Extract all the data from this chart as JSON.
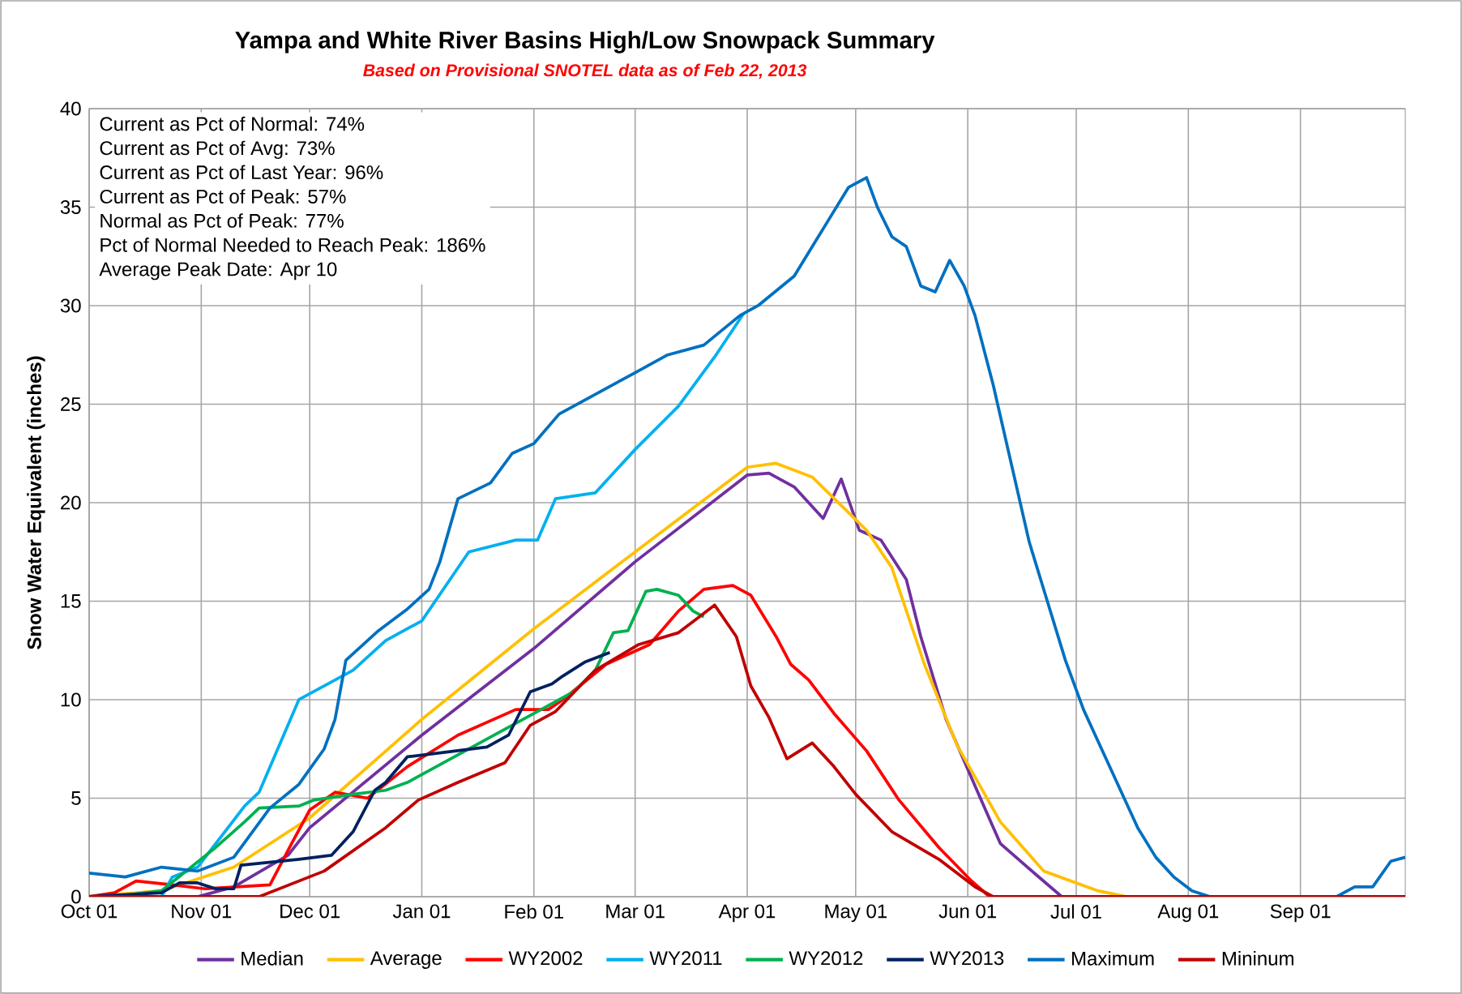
{
  "chart_data": {
    "type": "line",
    "title": "Yampa and White River Basins High/Low Snowpack Summary",
    "subtitle": "Based on Provisional SNOTEL data as of Feb 22, 2013",
    "ylabel": "Snow Water Equivalent (inches)",
    "xlim": [
      "2012-10-01",
      "2013-09-30"
    ],
    "ylim": [
      0,
      40
    ],
    "xticks": [
      {
        "value": "2012-10-01",
        "label": "Oct 01"
      },
      {
        "value": "2012-11-01",
        "label": "Nov 01"
      },
      {
        "value": "2012-12-01",
        "label": "Dec 01"
      },
      {
        "value": "2013-01-01",
        "label": "Jan 01"
      },
      {
        "value": "2013-02-01",
        "label": "Feb 01"
      },
      {
        "value": "2013-03-01",
        "label": "Mar 01"
      },
      {
        "value": "2013-04-01",
        "label": "Apr 01"
      },
      {
        "value": "2013-05-01",
        "label": "May 01"
      },
      {
        "value": "2013-06-01",
        "label": "Jun 01"
      },
      {
        "value": "2013-07-01",
        "label": "Jul 01"
      },
      {
        "value": "2013-08-01",
        "label": "Aug 01"
      },
      {
        "value": "2013-09-01",
        "label": "Sep 01"
      }
    ],
    "yticks": [
      0,
      5,
      10,
      15,
      20,
      25,
      30,
      35,
      40
    ],
    "grid": true,
    "legend": "bottom",
    "line_style": "solid",
    "annotations": [
      "Current as Pct of Normal: 74%",
      "Current as Pct of Avg: 73%",
      "Current as Pct of Last Year: 96%",
      "Current as Pct of Peak: 57%",
      "Normal as Pct of Peak: 77%",
      "Pct of Normal Needed to Reach Peak: 186%",
      "Average Peak Date: Apr 10"
    ],
    "series": [
      {
        "name": "Median",
        "color": "#7030a0",
        "x": [
          "2012-10-01",
          "2012-10-31",
          "2012-11-10",
          "2012-11-25",
          "2012-12-01",
          "2013-01-01",
          "2013-02-01",
          "2013-03-01",
          "2013-04-01",
          "2013-04-07",
          "2013-04-14",
          "2013-04-22",
          "2013-04-27",
          "2013-05-02",
          "2013-05-08",
          "2013-05-15",
          "2013-05-19",
          "2013-05-26",
          "2013-06-04",
          "2013-06-10",
          "2013-06-20",
          "2013-06-27",
          "2013-09-30"
        ],
        "values": [
          0,
          0,
          0.5,
          2.1,
          3.5,
          8.2,
          12.6,
          17.0,
          21.4,
          21.5,
          20.8,
          19.2,
          21.2,
          18.6,
          18.1,
          16.1,
          13.2,
          9.0,
          5.2,
          2.7,
          1.1,
          0,
          0
        ]
      },
      {
        "name": "Average",
        "color": "#ffc000",
        "x": [
          "2012-10-01",
          "2012-10-21",
          "2012-11-10",
          "2012-12-01",
          "2013-01-01",
          "2013-02-01",
          "2013-03-01",
          "2013-04-01",
          "2013-04-09",
          "2013-04-19",
          "2013-04-29",
          "2013-05-04",
          "2013-05-11",
          "2013-05-20",
          "2013-05-29",
          "2013-06-10",
          "2013-06-22",
          "2013-07-07",
          "2013-07-15",
          "2013-09-30"
        ],
        "values": [
          0,
          0.3,
          1.5,
          4.0,
          9.0,
          13.6,
          17.5,
          21.8,
          22.0,
          21.3,
          19.5,
          18.6,
          16.7,
          11.8,
          7.7,
          3.8,
          1.3,
          0.3,
          0,
          0
        ]
      },
      {
        "name": "WY2002",
        "color": "#ff0000",
        "x": [
          "2012-10-01",
          "2012-10-08",
          "2012-10-14",
          "2012-10-24",
          "2012-11-02",
          "2012-11-20",
          "2012-11-26",
          "2012-12-01",
          "2012-12-08",
          "2012-12-17",
          "2012-12-28",
          "2013-01-11",
          "2013-01-27",
          "2013-02-05",
          "2013-02-09",
          "2013-02-21",
          "2013-03-05",
          "2013-03-13",
          "2013-03-20",
          "2013-03-28",
          "2013-04-02",
          "2013-04-09",
          "2013-04-13",
          "2013-04-18",
          "2013-04-25",
          "2013-05-04",
          "2013-05-13",
          "2013-05-24",
          "2013-06-02",
          "2013-06-07",
          "2013-09-30"
        ],
        "values": [
          0,
          0.2,
          0.8,
          0.6,
          0.4,
          0.6,
          2.7,
          4.4,
          5.3,
          5.0,
          6.6,
          8.2,
          9.5,
          9.5,
          10.0,
          11.8,
          12.8,
          14.5,
          15.6,
          15.8,
          15.3,
          13.2,
          11.8,
          11.0,
          9.3,
          7.4,
          4.9,
          2.5,
          0.8,
          0,
          0
        ]
      },
      {
        "name": "WY2011",
        "color": "#00b0f0",
        "x": [
          "2012-10-01",
          "2012-10-21",
          "2012-10-24",
          "2012-10-31",
          "2012-11-13",
          "2012-11-17",
          "2012-11-28",
          "2012-12-13",
          "2012-12-22",
          "2013-01-01",
          "2013-01-14",
          "2013-01-27",
          "2013-02-02",
          "2013-02-07",
          "2013-02-18",
          "2013-03-01",
          "2013-03-13",
          "2013-03-23",
          "2013-03-31"
        ],
        "values": [
          0,
          0,
          1.0,
          1.5,
          4.6,
          5.3,
          10.0,
          11.5,
          13.0,
          14.0,
          17.5,
          18.1,
          18.1,
          20.2,
          20.5,
          22.7,
          24.9,
          27.4,
          29.6
        ]
      },
      {
        "name": "WY2012",
        "color": "#00b050",
        "x": [
          "2012-10-01",
          "2012-10-08",
          "2012-10-21",
          "2012-11-05",
          "2012-11-13",
          "2012-11-17",
          "2012-11-28",
          "2012-12-02",
          "2012-12-13",
          "2012-12-22",
          "2012-12-28",
          "2013-01-09",
          "2013-01-24",
          "2013-02-03",
          "2013-02-12",
          "2013-02-18",
          "2013-02-23",
          "2013-02-27",
          "2013-03-04",
          "2013-03-07",
          "2013-03-13",
          "2013-03-17",
          "2013-03-20"
        ],
        "values": [
          0,
          0,
          0.3,
          2.5,
          3.8,
          4.5,
          4.6,
          4.9,
          5.2,
          5.4,
          5.8,
          7.0,
          8.5,
          9.5,
          10.4,
          11.5,
          13.4,
          13.5,
          15.5,
          15.6,
          15.3,
          14.5,
          14.2
        ]
      },
      {
        "name": "WY2013",
        "color": "#002060",
        "x": [
          "2012-10-01",
          "2012-10-21",
          "2012-10-26",
          "2012-10-31",
          "2012-11-05",
          "2012-11-10",
          "2012-11-12",
          "2012-11-28",
          "2012-12-07",
          "2012-12-13",
          "2012-12-19",
          "2012-12-22",
          "2012-12-28",
          "2013-01-06",
          "2013-01-19",
          "2013-01-25",
          "2013-01-31",
          "2013-02-06",
          "2013-02-09",
          "2013-02-15",
          "2013-02-22"
        ],
        "values": [
          0,
          0.2,
          0.7,
          0.7,
          0.4,
          0.4,
          1.6,
          1.9,
          2.1,
          3.3,
          5.4,
          5.8,
          7.1,
          7.3,
          7.6,
          8.2,
          10.4,
          10.8,
          11.2,
          11.9,
          12.4
        ]
      },
      {
        "name": "Maximum",
        "color": "#0070c0",
        "x": [
          "2012-10-01",
          "2012-10-11",
          "2012-10-21",
          "2012-10-31",
          "2012-11-10",
          "2012-11-20",
          "2012-11-28",
          "2012-12-05",
          "2012-12-08",
          "2012-12-11",
          "2012-12-20",
          "2012-12-28",
          "2013-01-03",
          "2013-01-06",
          "2013-01-11",
          "2013-01-20",
          "2013-01-26",
          "2013-02-01",
          "2013-02-08",
          "2013-02-18",
          "2013-02-28",
          "2013-03-10",
          "2013-03-20",
          "2013-03-30",
          "2013-04-04",
          "2013-04-14",
          "2013-04-19",
          "2013-04-24",
          "2013-04-29",
          "2013-05-04",
          "2013-05-07",
          "2013-05-11",
          "2013-05-15",
          "2013-05-19",
          "2013-05-23",
          "2013-05-27",
          "2013-05-31",
          "2013-06-03",
          "2013-06-08",
          "2013-06-13",
          "2013-06-18",
          "2013-06-23",
          "2013-06-28",
          "2013-07-03",
          "2013-07-08",
          "2013-07-13",
          "2013-07-18",
          "2013-07-23",
          "2013-07-28",
          "2013-08-02",
          "2013-08-07",
          "2013-09-11",
          "2013-09-16",
          "2013-09-21",
          "2013-09-26",
          "2013-09-30"
        ],
        "values": [
          1.2,
          1.0,
          1.5,
          1.3,
          2.0,
          4.5,
          5.7,
          7.5,
          9.0,
          12.0,
          13.5,
          14.6,
          15.6,
          17.0,
          20.2,
          21.0,
          22.5,
          23.0,
          24.5,
          25.5,
          26.5,
          27.5,
          28.0,
          29.5,
          30.0,
          31.5,
          33.0,
          34.5,
          36.0,
          36.5,
          35.0,
          33.5,
          33.0,
          31.0,
          30.7,
          32.3,
          31.0,
          29.5,
          26.0,
          22.0,
          18.0,
          15.0,
          12.0,
          9.5,
          7.5,
          5.5,
          3.5,
          2.0,
          1.0,
          0.3,
          0,
          0,
          0.5,
          0.5,
          1.8,
          2.0
        ]
      },
      {
        "name": "Mininum",
        "color": "#c00000",
        "x": [
          "2012-10-01",
          "2012-11-17",
          "2012-12-05",
          "2012-12-22",
          "2012-12-31",
          "2013-01-11",
          "2013-01-24",
          "2013-01-31",
          "2013-02-07",
          "2013-02-18",
          "2013-03-02",
          "2013-03-13",
          "2013-03-23",
          "2013-03-29",
          "2013-04-02",
          "2013-04-07",
          "2013-04-12",
          "2013-04-19",
          "2013-04-25",
          "2013-05-01",
          "2013-05-11",
          "2013-05-24",
          "2013-06-03",
          "2013-06-08",
          "2013-09-30"
        ],
        "values": [
          0,
          0,
          1.3,
          3.5,
          4.9,
          5.8,
          6.8,
          8.7,
          9.4,
          11.5,
          12.8,
          13.4,
          14.8,
          13.2,
          10.7,
          9.1,
          7.0,
          7.8,
          6.6,
          5.2,
          3.3,
          1.9,
          0.5,
          0,
          0
        ]
      }
    ]
  }
}
